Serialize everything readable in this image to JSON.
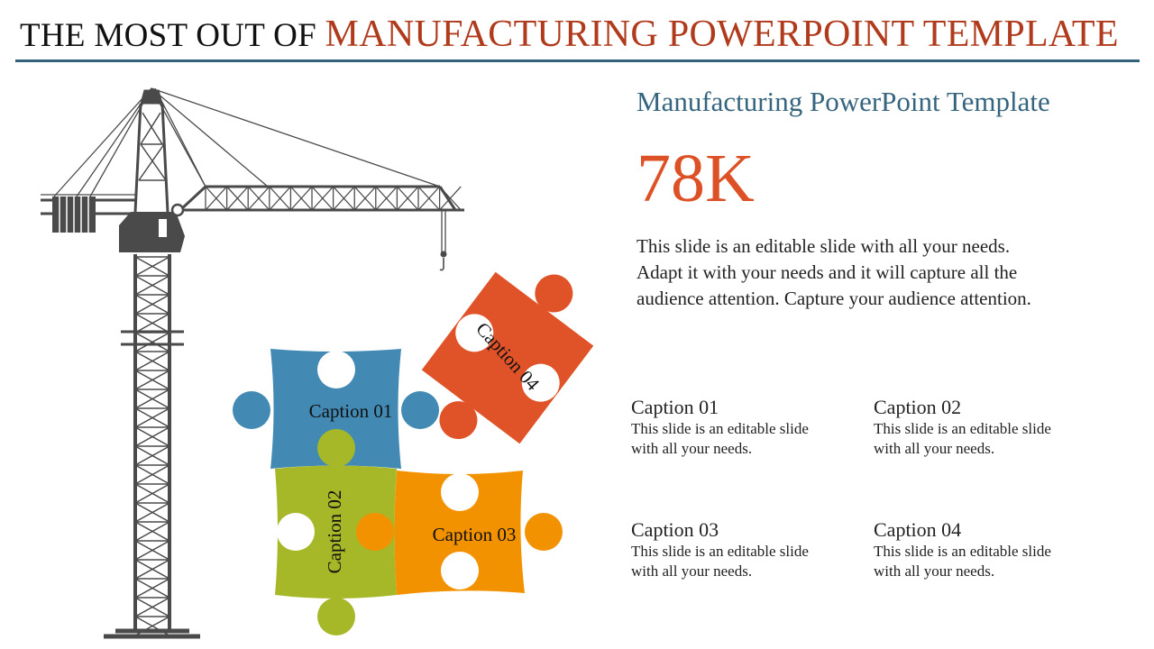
{
  "header": {
    "title_prefix": "THE MOST OUT OF",
    "title_accent": "MANUFACTURING POWERPOINT TEMPLATE"
  },
  "main": {
    "subtitle": "Manufacturing PowerPoint Template",
    "stat": "78K",
    "description": "This slide is an editable slide with all your needs. Adapt it with your needs and it will capture all the audience attention. Capture your audience attention."
  },
  "puzzle": [
    {
      "label": "Caption 01",
      "color": "#428ab3"
    },
    {
      "label": "Caption 02",
      "color": "#a6b828"
    },
    {
      "label": "Caption 03",
      "color": "#f39200"
    },
    {
      "label": "Caption 04",
      "color": "#e05328"
    }
  ],
  "captions": [
    {
      "title": "Caption 01",
      "text": "This slide is an editable slide with all your needs."
    },
    {
      "title": "Caption 02",
      "text": "This slide is an editable slide with all your needs."
    },
    {
      "title": "Caption 03",
      "text": "This slide is an editable slide with all your needs."
    },
    {
      "title": "Caption 04",
      "text": "This slide is an editable slide with all your needs."
    }
  ],
  "colors": {
    "crane": "#4a4a4a",
    "rule": "#33627d"
  }
}
